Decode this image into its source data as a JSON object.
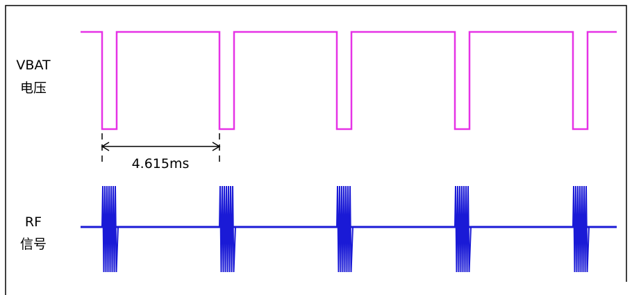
{
  "labels": {
    "vbat_line1": "VBAT",
    "vbat_line2": "电压",
    "rf_line1": "RF",
    "rf_line2": "信号"
  },
  "measurement": {
    "period_label": "4.615ms"
  },
  "colors": {
    "vbat": "#e632e6",
    "rf": "#1a1ad6",
    "frame": "#000000"
  }
}
